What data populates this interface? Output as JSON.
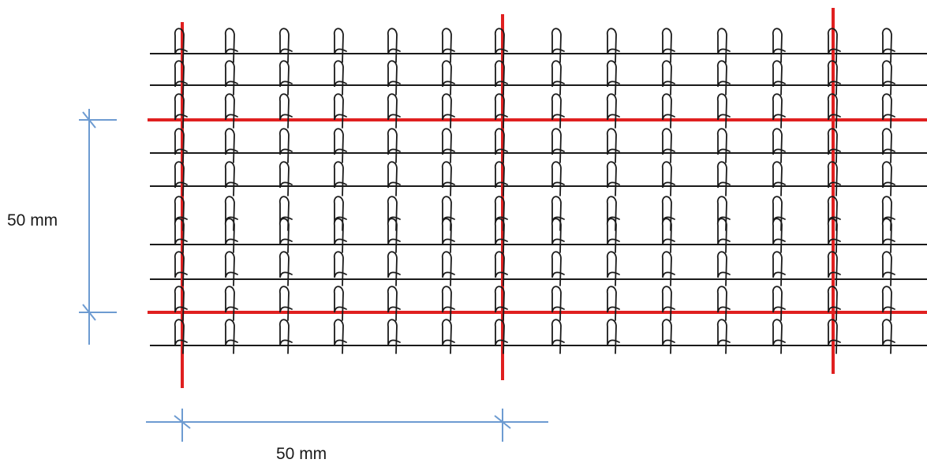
{
  "diagram": {
    "vertical_dimension_label": "50 mm",
    "horizontal_dimension_label": "50 mm"
  },
  "colors": {
    "background": "#ffffff",
    "warp_threads": "#1a1a1a",
    "reinforcement_grid": "#e02020",
    "dimension_lines": "#6d9bd1",
    "text": "#1a1a1a"
  }
}
